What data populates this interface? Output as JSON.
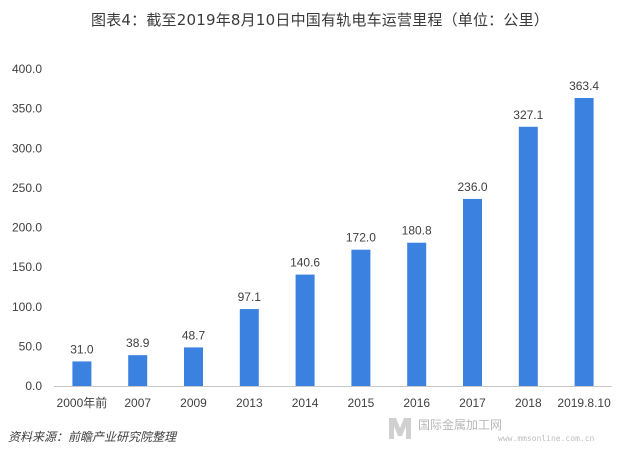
{
  "chart_data": {
    "type": "bar",
    "title": "图表4：截至2019年8月10日中国有轨电车运营里程（单位：公里）",
    "categories": [
      "2000年前",
      "2007",
      "2009",
      "2013",
      "2014",
      "2015",
      "2016",
      "2017",
      "2018",
      "2019.8.10"
    ],
    "series": [
      {
        "values": [
          31.0,
          38.9,
          48.7,
          97.1,
          140.6,
          172.0,
          180.8,
          236.0,
          327.1,
          363.4
        ],
        "color": "#3b82e0"
      }
    ],
    "value_labels": [
      "31.0",
      "38.9",
      "48.7",
      "97.1",
      "140.6",
      "172.0",
      "180.8",
      "236.0",
      "327.1",
      "363.4"
    ],
    "ylim": [
      0,
      400
    ],
    "yticks": [
      0,
      50,
      100,
      150,
      200,
      250,
      300,
      350,
      400
    ],
    "ytick_labels": [
      "0.0",
      "50.0",
      "100.0",
      "150.0",
      "200.0",
      "250.0",
      "300.0",
      "350.0",
      "400.0"
    ],
    "xlabel": "",
    "ylabel": "",
    "grid": false,
    "legend": "none"
  },
  "source_note": "资料来源：前瞻产业研究院整理",
  "watermark": {
    "text": "国际金属加工网",
    "url": "www.mmsonline.com.cn"
  },
  "colors": {
    "bar": "#3b82e0",
    "axis": "#c8c8c8",
    "watermark": "#b8b8b8"
  }
}
